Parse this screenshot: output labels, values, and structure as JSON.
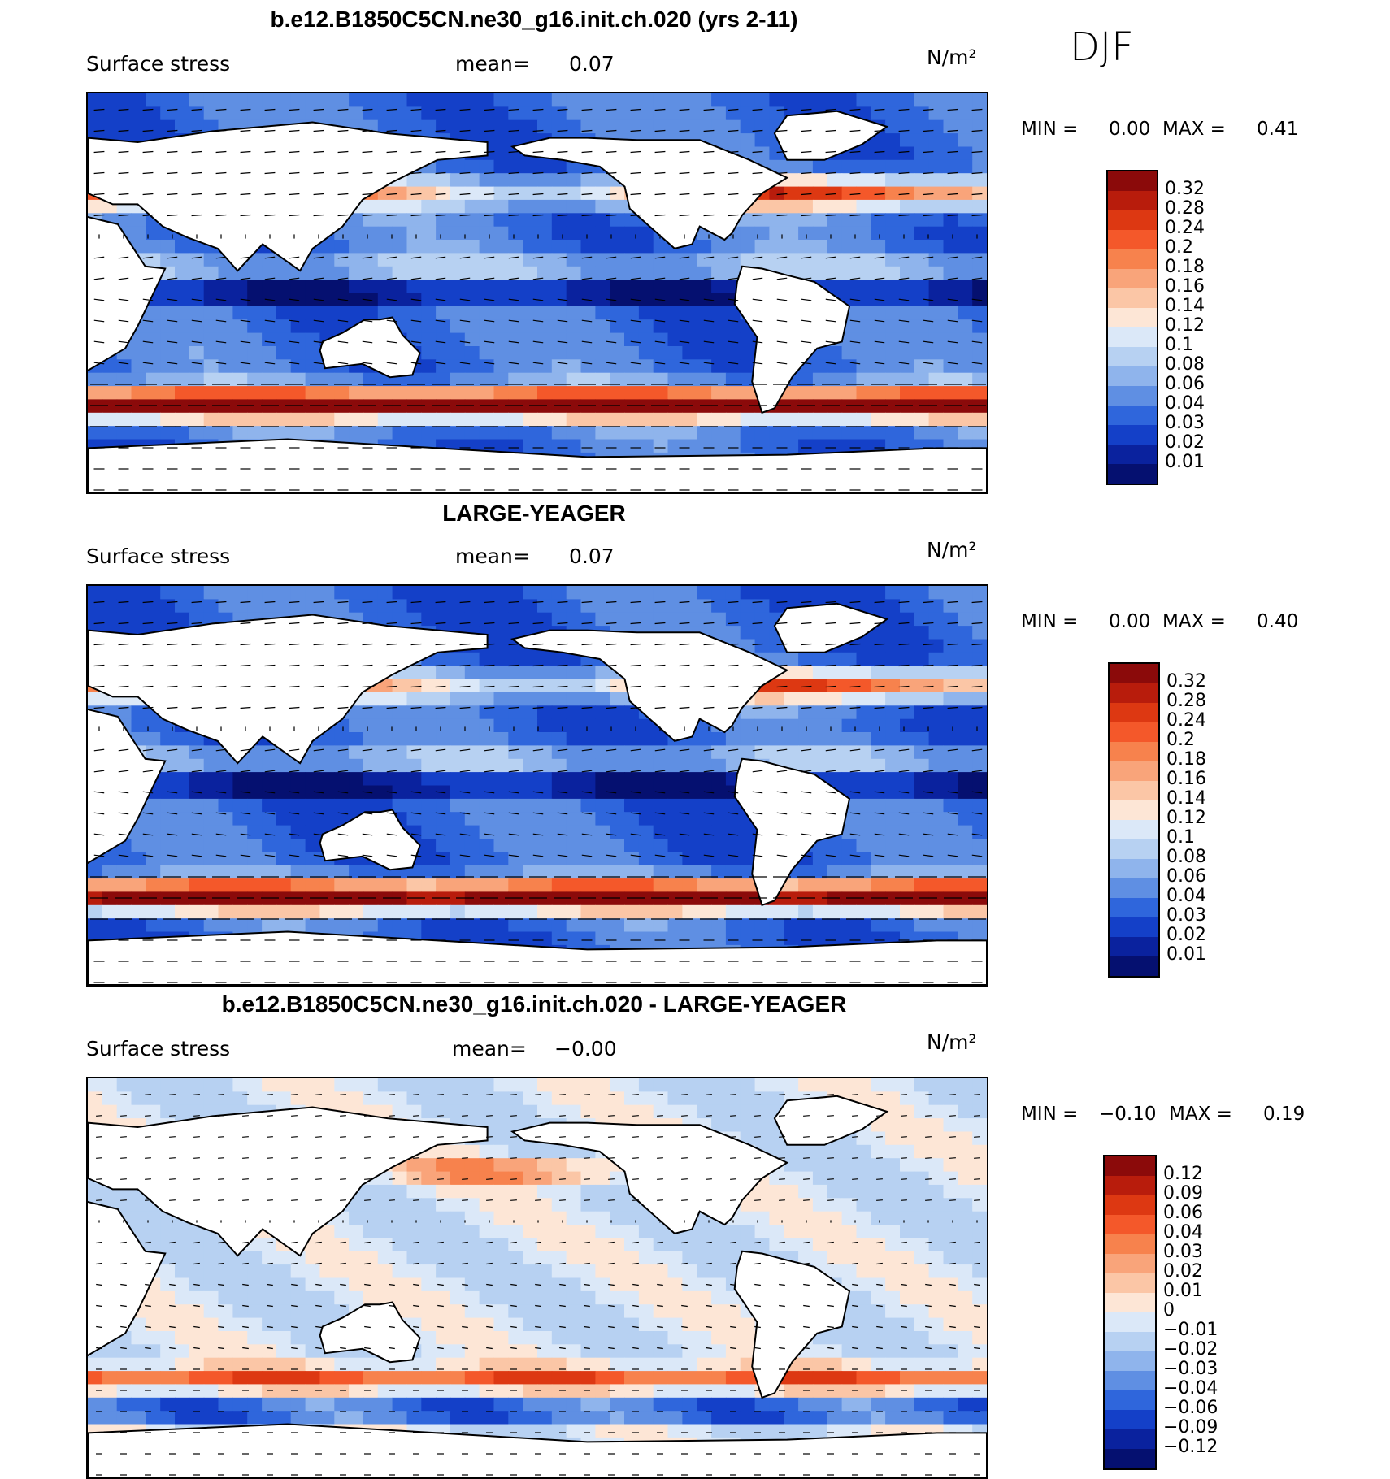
{
  "season": "DJF",
  "panels": [
    {
      "title": "b.e12.B1850C5CN.ne30_g16.init.ch.020 (yrs 2-11)",
      "variable": "Surface stress",
      "mean_label": "mean=",
      "mean_value": "0.07",
      "units": "N/m²",
      "min_label": "MIN =",
      "min_value": "0.00",
      "max_label": "MAX =",
      "max_value": "0.41",
      "levels": [
        "0.32",
        "0.28",
        "0.24",
        "0.2",
        "0.18",
        "0.16",
        "0.14",
        "0.12",
        "0.1",
        "0.08",
        "0.06",
        "0.04",
        "0.03",
        "0.02",
        "0.01"
      ],
      "colors": [
        "#8b0a0a",
        "#b81c0c",
        "#dd3812",
        "#f4582a",
        "#f7824d",
        "#f9a47a",
        "#fbc6a6",
        "#fde6d6",
        "#dbe8f8",
        "#b7d1f2",
        "#8fb4ec",
        "#5f8fe3",
        "#2f66dc",
        "#1440c8",
        "#0a229e",
        "#051070"
      ]
    },
    {
      "title": "LARGE-YEAGER",
      "variable": "Surface stress",
      "mean_label": "mean=",
      "mean_value": "0.07",
      "units": "N/m²",
      "min_label": "MIN =",
      "min_value": "0.00",
      "max_label": "MAX =",
      "max_value": "0.40",
      "levels": [
        "0.32",
        "0.28",
        "0.24",
        "0.2",
        "0.18",
        "0.16",
        "0.14",
        "0.12",
        "0.1",
        "0.08",
        "0.06",
        "0.04",
        "0.03",
        "0.02",
        "0.01"
      ],
      "colors": [
        "#8b0a0a",
        "#b81c0c",
        "#dd3812",
        "#f4582a",
        "#f7824d",
        "#f9a47a",
        "#fbc6a6",
        "#fde6d6",
        "#dbe8f8",
        "#b7d1f2",
        "#8fb4ec",
        "#5f8fe3",
        "#2f66dc",
        "#1440c8",
        "#0a229e",
        "#051070"
      ]
    },
    {
      "title": "b.e12.B1850C5CN.ne30_g16.init.ch.020 - LARGE-YEAGER",
      "variable": "Surface stress",
      "mean_label": "mean=",
      "mean_value": "−0.00",
      "units": "N/m²",
      "min_label": "MIN =",
      "min_value": "−0.10",
      "max_label": "MAX =",
      "max_value": "0.19",
      "levels": [
        "0.12",
        "0.09",
        "0.06",
        "0.04",
        "0.03",
        "0.02",
        "0.01",
        "0",
        "−0.01",
        "−0.02",
        "−0.03",
        "−0.04",
        "−0.06",
        "−0.09",
        "−0.12"
      ],
      "colors": [
        "#8b0a0a",
        "#b81c0c",
        "#dd3812",
        "#f4582a",
        "#f7824d",
        "#f9a47a",
        "#fbc6a6",
        "#fde6d6",
        "#dbe8f8",
        "#b7d1f2",
        "#8fb4ec",
        "#5f8fe3",
        "#2f66dc",
        "#1440c8",
        "#0a229e",
        "#051070"
      ]
    }
  ]
}
